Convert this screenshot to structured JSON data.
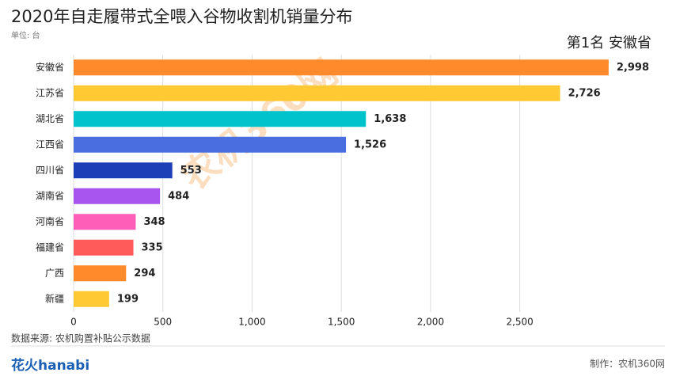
{
  "chart_data": {
    "type": "bar",
    "orientation": "horizontal",
    "title": "2020年自走履带式全喂入谷物收割机销量分布",
    "subtitle": "单位: 台",
    "annotation": "第1名 安徽省",
    "categories": [
      "安徽省",
      "江苏省",
      "湖北省",
      "江西省",
      "四川省",
      "湖南省",
      "河南省",
      "福建省",
      "广西",
      "新疆"
    ],
    "values": [
      2998,
      2726,
      1638,
      1526,
      553,
      484,
      348,
      335,
      294,
      199
    ],
    "value_labels": [
      "2,998",
      "2,726",
      "1,638",
      "1,526",
      "553",
      "484",
      "348",
      "335",
      "294",
      "199"
    ],
    "colors": [
      "#ff8a2b",
      "#ffc933",
      "#00c3cc",
      "#4a6ee0",
      "#1c3fb8",
      "#a855f0",
      "#ff5eb8",
      "#ff5b5b",
      "#ff8a2b",
      "#ffc933"
    ],
    "xlim": [
      0,
      3300
    ],
    "xticks": [
      0,
      500,
      {
        "value": 1000,
        "label": "1,000"
      },
      {
        "value": 1500,
        "label": "1,500"
      },
      {
        "value": 2000,
        "label": "2,000"
      },
      {
        "value": 2500,
        "label": "2,500"
      }
    ],
    "grid": true,
    "source": "数据来源: 农机购置补贴公示数据",
    "credit": "制作：农机360网",
    "logo": "花火hanabi",
    "watermark": "农机360网"
  }
}
